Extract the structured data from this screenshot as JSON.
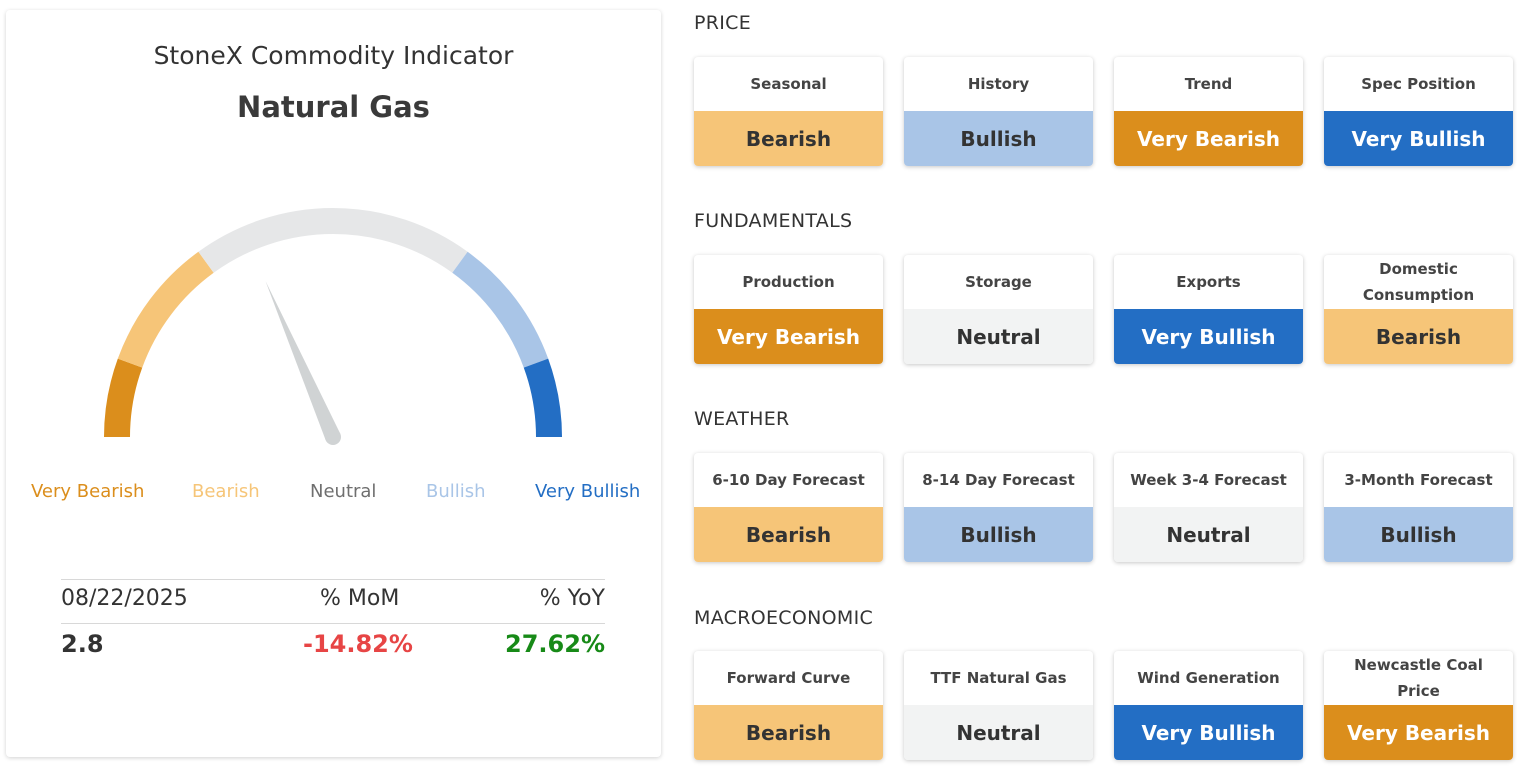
{
  "indicator": {
    "title": "StoneX Commodity Indicator",
    "commodity": "Natural Gas",
    "gauge_level": 0.37,
    "scale": [
      {
        "label": "Very Bearish",
        "color": "#db8e1c"
      },
      {
        "label": "Bearish",
        "color": "#f6c578"
      },
      {
        "label": "Neutral",
        "color": "#6f6f6f"
      },
      {
        "label": "Bullish",
        "color": "#a9c5e7"
      },
      {
        "label": "Very Bullish",
        "color": "#236ec4"
      }
    ],
    "stats": {
      "date": "08/22/2025",
      "mom_label": "% MoM",
      "yoy_label": "% YoY",
      "value": "2.8",
      "mom": "-14.82%",
      "yoy": "27.62%",
      "mom_color": "#e74545",
      "yoy_color": "#178a17"
    }
  },
  "sections": [
    {
      "title": "PRICE",
      "tiles": [
        {
          "label": "Seasonal",
          "value": "Bearish"
        },
        {
          "label": "History",
          "value": "Bullish"
        },
        {
          "label": "Trend",
          "value": "Very Bearish"
        },
        {
          "label": "Spec Position",
          "value": "Very Bullish"
        }
      ]
    },
    {
      "title": "FUNDAMENTALS",
      "tiles": [
        {
          "label": "Production",
          "value": "Very Bearish"
        },
        {
          "label": "Storage",
          "value": "Neutral"
        },
        {
          "label": "Exports",
          "value": "Very Bullish"
        },
        {
          "label": "Domestic Consumption",
          "value": "Bearish"
        }
      ]
    },
    {
      "title": "WEATHER",
      "tiles": [
        {
          "label": "6-10 Day Forecast",
          "value": "Bearish"
        },
        {
          "label": "8-14 Day Forecast",
          "value": "Bullish"
        },
        {
          "label": "Week 3-4 Forecast",
          "value": "Neutral"
        },
        {
          "label": "3-Month Forecast",
          "value": "Bullish"
        }
      ]
    },
    {
      "title": "MACROECONOMIC",
      "tiles": [
        {
          "label": "Forward Curve",
          "value": "Bearish"
        },
        {
          "label": "TTF Natural Gas",
          "value": "Neutral"
        },
        {
          "label": "Wind Generation",
          "value": "Very Bullish"
        },
        {
          "label": "Newcastle Coal Price",
          "value": "Very Bearish"
        }
      ]
    }
  ],
  "colors": {
    "very_bearish": "#db8e1c",
    "bearish": "#f6c578",
    "neutral": "#f2f3f3",
    "neutral_arc": "#e6e7e8",
    "bullish": "#a9c5e7",
    "very_bullish": "#236ec4",
    "needle": "#d0d3d4"
  }
}
